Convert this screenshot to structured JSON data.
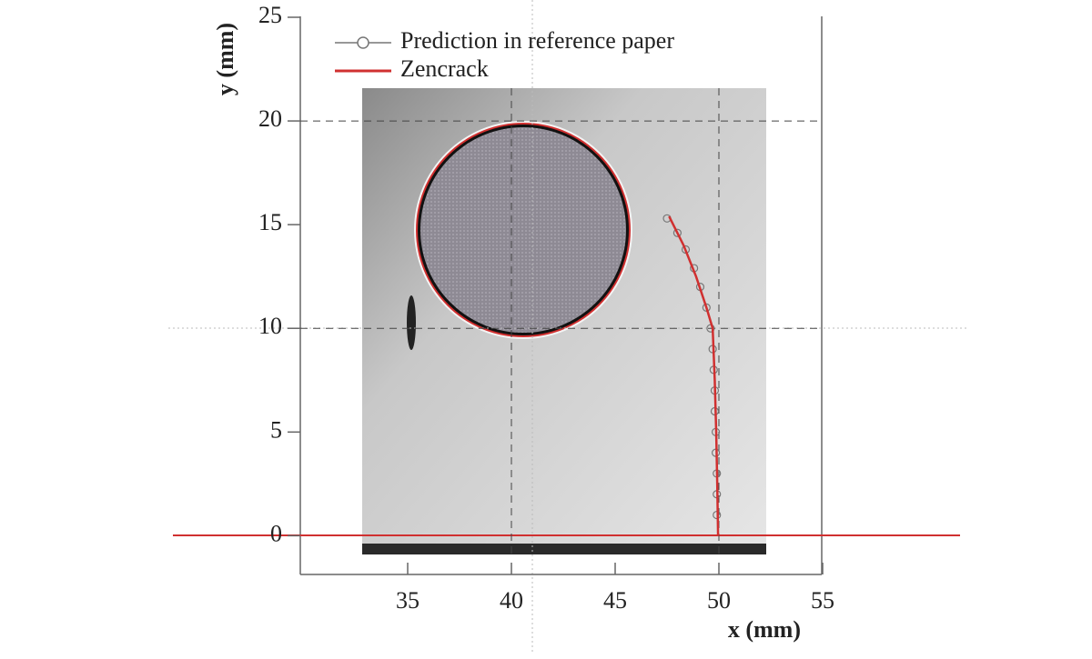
{
  "chart_data": {
    "type": "line",
    "xlabel": "x  (mm)",
    "ylabel": "y  (mm)",
    "xlim": [
      30,
      55
    ],
    "xticks": [
      35,
      40,
      45,
      50,
      55
    ],
    "ylim": [
      -2,
      25
    ],
    "yticks": [
      0,
      5,
      10,
      15,
      20,
      25
    ],
    "grid": true,
    "series": [
      {
        "name": "Prediction in reference paper",
        "color": "#777777",
        "marker": "circle",
        "x": [
          47.5,
          48.0,
          48.4,
          48.8,
          49.1,
          49.4,
          49.6,
          49.7,
          49.75,
          49.8,
          49.8,
          49.85,
          49.85,
          49.9,
          49.9,
          49.9
        ],
        "values": [
          15.3,
          14.6,
          13.8,
          12.9,
          12.0,
          11.0,
          10.0,
          9.0,
          8.0,
          7.0,
          6.0,
          5.0,
          4.0,
          3.0,
          2.0,
          1.0
        ]
      },
      {
        "name": "Zencrack",
        "color": "#d03030",
        "marker": "none",
        "x": [
          47.6,
          48.3,
          48.9,
          49.4,
          49.7,
          49.8,
          49.87,
          49.92,
          49.96
        ],
        "values": [
          15.4,
          14.0,
          12.5,
          11.0,
          10.0,
          7.5,
          5.0,
          2.5,
          0
        ]
      }
    ]
  }
}
